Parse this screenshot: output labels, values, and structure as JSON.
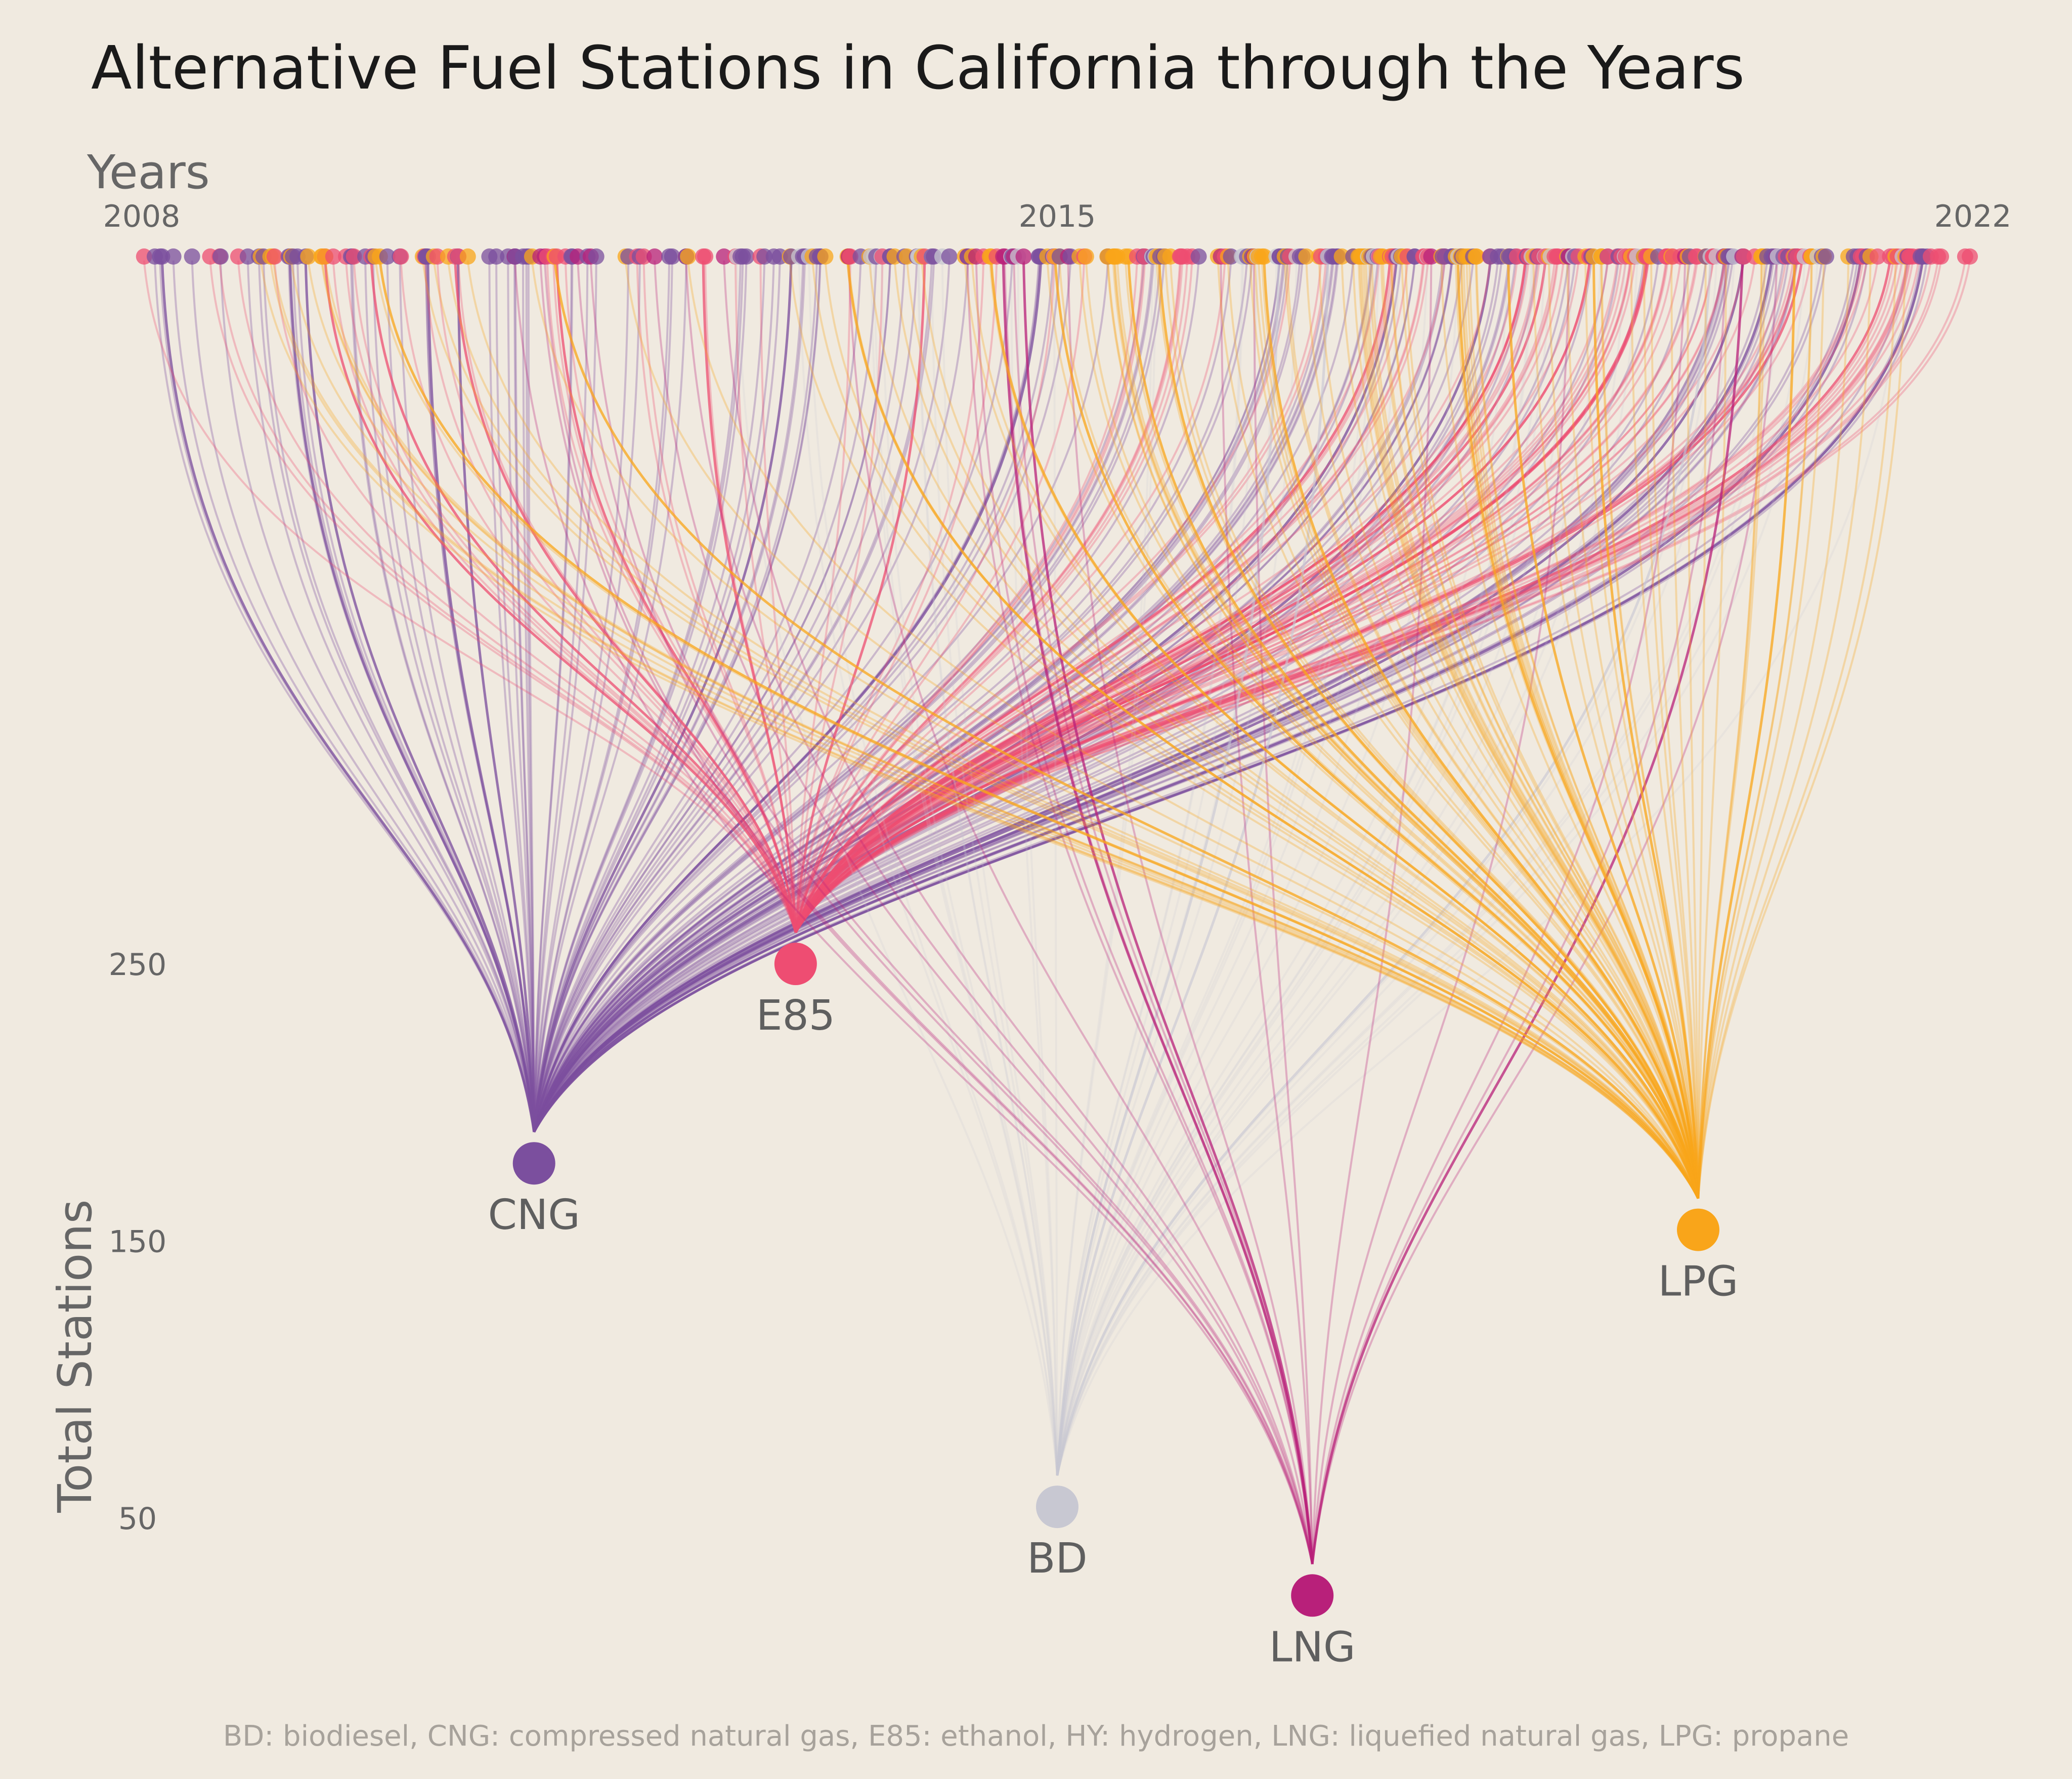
{
  "chart_data": {
    "type": "network",
    "title": "Alternative Fuel Stations in California through the Years",
    "x_axis": {
      "label": "Years",
      "ticks": [
        2008,
        2015,
        2022
      ],
      "range": [
        2008,
        2022
      ]
    },
    "y_axis": {
      "label": "Total Stations",
      "ticks": [
        50,
        150,
        250
      ]
    },
    "caption": "BD: biodiesel, CNG: compressed natural gas, E85: ethanol, HY: hydrogen, LNG: liquefied natural gas, LPG: propane",
    "colors": {
      "background": "#f0eae0",
      "CNG": "#7b4f9e",
      "E85": "#ee4d72",
      "BD": "#c8c8d2",
      "LNG": "#b8207a",
      "LPG": "#f9a51a"
    },
    "fuels": [
      {
        "code": "CNG",
        "name": "compressed natural gas",
        "total_stations": 178,
        "x_year": 2011.0,
        "color": "#7b4f9e"
      },
      {
        "code": "E85",
        "name": "ethanol",
        "total_stations": 250,
        "x_year": 2013.0,
        "color": "#ee4d72"
      },
      {
        "code": "BD",
        "name": "biodiesel",
        "total_stations": 54,
        "x_year": 2015.0,
        "color": "#c8c8d2"
      },
      {
        "code": "LNG",
        "name": "liquefied natural gas",
        "total_stations": 22,
        "x_year": 2016.95,
        "color": "#b8207a"
      },
      {
        "code": "LPG",
        "name": "propane",
        "total_stations": 154,
        "x_year": 2019.9,
        "color": "#f9a51a"
      }
    ]
  }
}
